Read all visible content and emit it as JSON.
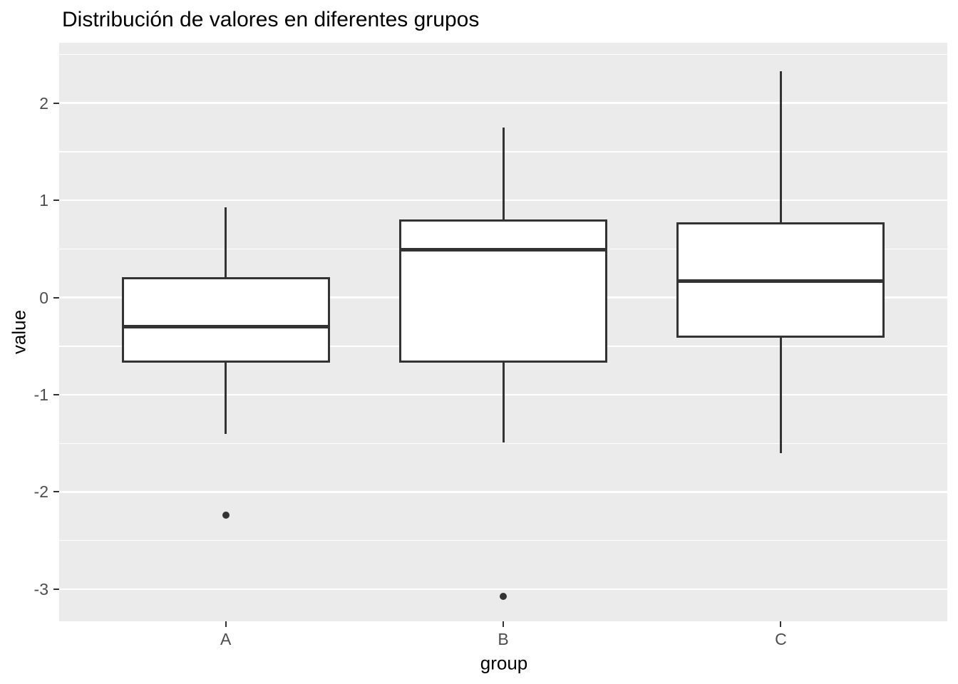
{
  "title": "Distribución de valores en diferentes grupos",
  "chart_data": {
    "type": "boxplot",
    "title": "Distribución de valores en diferentes grupos",
    "xlabel": "group",
    "ylabel": "value",
    "categories": [
      "A",
      "B",
      "C"
    ],
    "ylim": [
      -3.33,
      2.62
    ],
    "yticks": [
      2,
      1,
      0,
      -1,
      -2,
      -3
    ],
    "yticks_minor": [
      2.5,
      1.5,
      0.5,
      -0.5,
      -1.5,
      -2.5
    ],
    "grid": "major-and-minor-horizontal-white",
    "legend": "none",
    "series": [
      {
        "group": "A",
        "whisker_low": -1.4,
        "q1": -0.67,
        "median": -0.3,
        "q3": 0.21,
        "whisker_high": 0.93,
        "outliers": [
          -2.24
        ]
      },
      {
        "group": "B",
        "whisker_low": -1.49,
        "q1": -0.67,
        "median": 0.49,
        "q3": 0.8,
        "whisker_high": 1.75,
        "outliers": [
          -3.07
        ]
      },
      {
        "group": "C",
        "whisker_low": -1.6,
        "q1": -0.41,
        "median": 0.17,
        "q3": 0.77,
        "whisker_high": 2.33,
        "outliers": []
      }
    ],
    "colors": {
      "panel_bg": "#EBEBEB",
      "grid": "#FFFFFF",
      "box_fill": "#FFFFFF",
      "box_line": "#333333",
      "axis_text": "#4D4D4D",
      "title_text": "#000000"
    }
  }
}
